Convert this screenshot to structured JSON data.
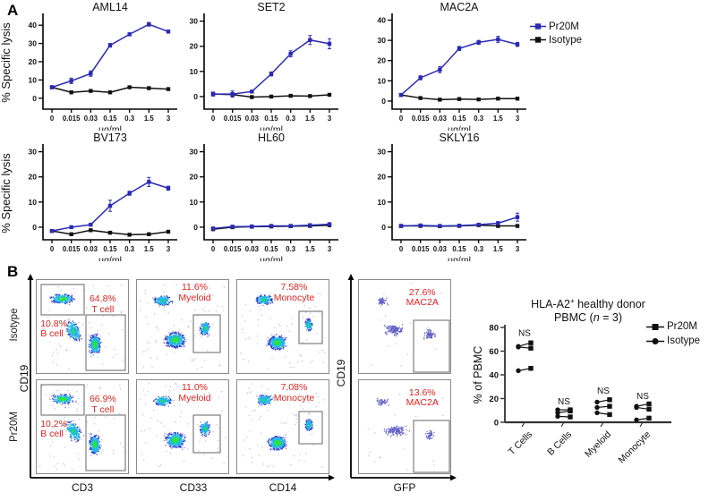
{
  "figure": {
    "panel_a": {
      "label": "A",
      "legend": [
        {
          "label": "Pr20M",
          "color": "#2a2ab5",
          "marker": "square"
        },
        {
          "label": "Isotype",
          "color": "#111111",
          "marker": "square"
        }
      ]
    },
    "panel_b": {
      "label": "B",
      "row_labels": [
        "Isotype",
        "Pr20M"
      ],
      "y_axis_label": "CD19",
      "gfp_y_axis_label": "CD19",
      "x_axis_labels": [
        "CD3",
        "CD33",
        "CD14"
      ],
      "gfp_x_axis_label": "GFP",
      "label_color": "#e02420",
      "cells": [
        {
          "pct1": "64.8%",
          "label1": "T cell",
          "pct2": "10.8%",
          "label2": "B cell"
        },
        {
          "pct1": "11.6%",
          "label1": "Myeloid"
        },
        {
          "pct1": "7.58%",
          "label1": "Monocyte"
        },
        {
          "pct1": "27.6%",
          "label1": "MAC2A"
        },
        {
          "pct1": "66.9%",
          "label1": "T cell",
          "pct2": "10.2%",
          "label2": "B cell"
        },
        {
          "pct1": "11.0%",
          "label1": "Myeloid"
        },
        {
          "pct1": "7.08%",
          "label1": "Monocyte"
        },
        {
          "pct1": "13.6%",
          "label1": "MAC2A"
        }
      ]
    }
  },
  "chart_data": [
    {
      "type": "line",
      "title": "AML14",
      "x_categories": [
        "0",
        "0.015",
        "0.03",
        "0.15",
        "0.3",
        "1.5",
        "3"
      ],
      "xlabel": "μg/ml",
      "ylabel": "% Specific lysis",
      "show_ylabel": true,
      "ylim": [
        -6,
        45
      ],
      "yticks": [
        0,
        10,
        20,
        30,
        40
      ],
      "series": [
        {
          "name": "Pr20M",
          "color": "#2a2ab5",
          "values": [
            6,
            9.5,
            13.5,
            29,
            35,
            40.5,
            36.5
          ],
          "err": [
            0.8,
            1.5,
            1.5,
            1,
            0.8,
            1,
            0.8
          ]
        },
        {
          "name": "Isotype",
          "color": "#111111",
          "values": [
            6,
            3.2,
            4,
            3.2,
            6,
            5.5,
            5
          ]
        }
      ]
    },
    {
      "type": "line",
      "title": "SET2",
      "x_categories": [
        "0",
        "0.015",
        "0.03",
        "0.15",
        "0.3",
        "1.5",
        "3"
      ],
      "xlabel": "μg/ml",
      "ylabel": "% Specific lysis",
      "show_ylabel": false,
      "ylim": [
        -5,
        32
      ],
      "yticks": [
        0,
        10,
        20,
        30
      ],
      "series": [
        {
          "name": "Pr20M",
          "color": "#2a2ab5",
          "values": [
            1,
            1,
            2,
            9,
            17,
            22.5,
            21
          ],
          "err": [
            0.8,
            1.2,
            0.5,
            0.8,
            1.2,
            1.8,
            2
          ]
        },
        {
          "name": "Isotype",
          "color": "#111111",
          "values": [
            1,
            0.8,
            -0.2,
            0,
            0.3,
            0.2,
            0.7
          ]
        }
      ]
    },
    {
      "type": "line",
      "title": "MAC2A",
      "x_categories": [
        "0",
        "0.015",
        "0.03",
        "0.15",
        "0.3",
        "1.5",
        "3"
      ],
      "xlabel": "μg/ml",
      "ylabel": "% Specific lysis",
      "show_ylabel": false,
      "ylim": [
        -4,
        42
      ],
      "yticks": [
        0,
        10,
        20,
        30,
        40
      ],
      "series": [
        {
          "name": "Pr20M",
          "color": "#2a2ab5",
          "values": [
            3,
            11.5,
            15.5,
            26,
            29,
            30.5,
            28
          ],
          "err": [
            0.5,
            1,
            1.5,
            1,
            1,
            1.5,
            1
          ]
        },
        {
          "name": "Isotype",
          "color": "#111111",
          "values": [
            3,
            1.5,
            0.7,
            1,
            0.8,
            1.2,
            1.2
          ]
        }
      ]
    },
    {
      "type": "line",
      "title": "BV173",
      "x_categories": [
        "0",
        "0.015",
        "0.03",
        "0.15",
        "0.3",
        "1.5",
        "3"
      ],
      "xlabel": "μg/ml",
      "ylabel": "% Specific lysis",
      "show_ylabel": true,
      "ylim": [
        -5,
        32
      ],
      "yticks": [
        0,
        10,
        20,
        30
      ],
      "series": [
        {
          "name": "Pr20M",
          "color": "#2a2ab5",
          "values": [
            -1.5,
            0,
            1,
            8.5,
            13.5,
            18,
            15.5
          ],
          "err": [
            0.5,
            0.5,
            0.5,
            2.2,
            0.8,
            1.8,
            0.8
          ]
        },
        {
          "name": "Isotype",
          "color": "#111111",
          "values": [
            -1.5,
            -2.8,
            -1.2,
            -2.2,
            -3,
            -2.8,
            -1.8
          ]
        }
      ]
    },
    {
      "type": "line",
      "title": "HL60",
      "x_categories": [
        "0",
        "0.015",
        "0.03",
        "0.15",
        "0.3",
        "1.5",
        "3"
      ],
      "xlabel": "μg/ml",
      "ylabel": "% Specific lysis",
      "show_ylabel": false,
      "ylim": [
        -5,
        32
      ],
      "yticks": [
        0,
        10,
        20,
        30
      ],
      "series": [
        {
          "name": "Pr20M",
          "color": "#2a2ab5",
          "values": [
            -0.5,
            0.2,
            0.3,
            0.5,
            0.5,
            0.8,
            1.2
          ]
        },
        {
          "name": "Isotype",
          "color": "#111111",
          "values": [
            -0.8,
            0,
            0.2,
            0.3,
            0.4,
            0.5,
            0.8
          ]
        }
      ]
    },
    {
      "type": "line",
      "title": "SKLY16",
      "x_categories": [
        "0",
        "0.015",
        "0.03",
        "0.15",
        "0.3",
        "1.5",
        "3"
      ],
      "xlabel": "μg/ml",
      "ylabel": "% Specific lysis",
      "show_ylabel": false,
      "ylim": [
        -5,
        32
      ],
      "yticks": [
        0,
        10,
        20,
        30
      ],
      "series": [
        {
          "name": "Pr20M",
          "color": "#2a2ab5",
          "values": [
            0.5,
            0.7,
            0.5,
            0.6,
            1,
            1.6,
            4
          ],
          "err": [
            0.3,
            0.5,
            0.3,
            0.3,
            0.5,
            0.6,
            1.6
          ]
        },
        {
          "name": "Isotype",
          "color": "#111111",
          "values": [
            0.5,
            0.5,
            0.4,
            0.5,
            0.8,
            0.5,
            0.5
          ]
        }
      ]
    },
    {
      "type": "paired_scatter",
      "title": {
        "pre": "HLA-A2",
        "sup": "+",
        "post": " healthy donor",
        "line2_pre": "PBMC (",
        "n_italic": "n",
        "line2_post": " = 3)"
      },
      "ylabel": "% of PBMC",
      "ylim": [
        0,
        80
      ],
      "yticks": [
        0,
        20,
        40,
        60,
        80
      ],
      "categories": [
        "T Cells",
        "B Cells",
        "Myeloid",
        "Monocyte"
      ],
      "pairs": [
        [
          [
            64,
            67
          ],
          [
            63.5,
            62.5
          ],
          [
            43.5,
            45.5
          ]
        ],
        [
          [
            10.5,
            10.5
          ],
          [
            8,
            9.5
          ],
          [
            5,
            4.5
          ]
        ],
        [
          [
            17,
            19
          ],
          [
            12.5,
            13.5
          ],
          [
            8,
            6.5
          ]
        ],
        [
          [
            13.5,
            15.5
          ],
          [
            12.5,
            11
          ],
          [
            2,
            3.5
          ]
        ]
      ],
      "ns_label": "NS",
      "ns_y": [
        73,
        15,
        24,
        19.5
      ],
      "color": "#111111",
      "legend": [
        {
          "label": "Pr20M",
          "marker": "square"
        },
        {
          "label": "Isotype",
          "marker": "circle"
        }
      ]
    }
  ]
}
